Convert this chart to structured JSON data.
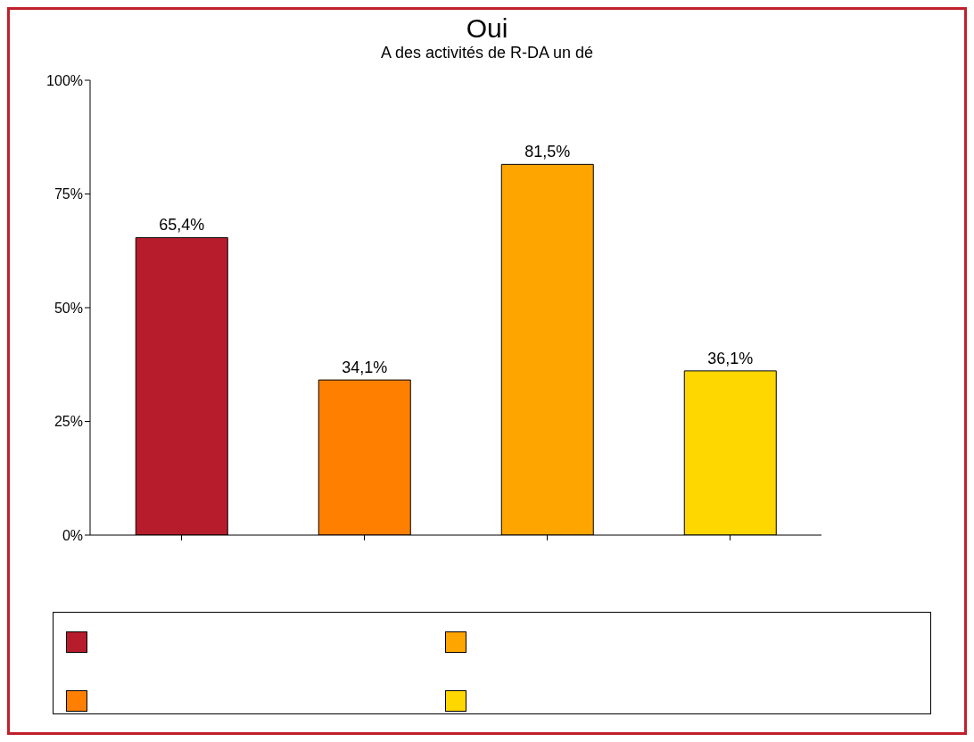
{
  "chart_data": {
    "type": "bar",
    "title": "Oui",
    "subtitle": "A des activités de R-DA un dé",
    "categories": [
      null,
      null,
      null,
      null
    ],
    "values": [
      65.4,
      34.1,
      81.5,
      36.1
    ],
    "colors": [
      "#b71c2c",
      "#ff7f00",
      "#ffa500",
      "#ffd700"
    ],
    "value_labels": [
      "65,4%",
      "34,1%",
      "81,5%",
      "36,1%"
    ],
    "ylim": [
      0,
      100
    ],
    "yticks": [
      {
        "value": 0,
        "label": "0%"
      },
      {
        "value": 25,
        "label": "25%"
      },
      {
        "value": 50,
        "label": "50%"
      },
      {
        "value": 75,
        "label": "75%"
      },
      {
        "value": 100,
        "label": "100%"
      }
    ],
    "grid": false
  }
}
